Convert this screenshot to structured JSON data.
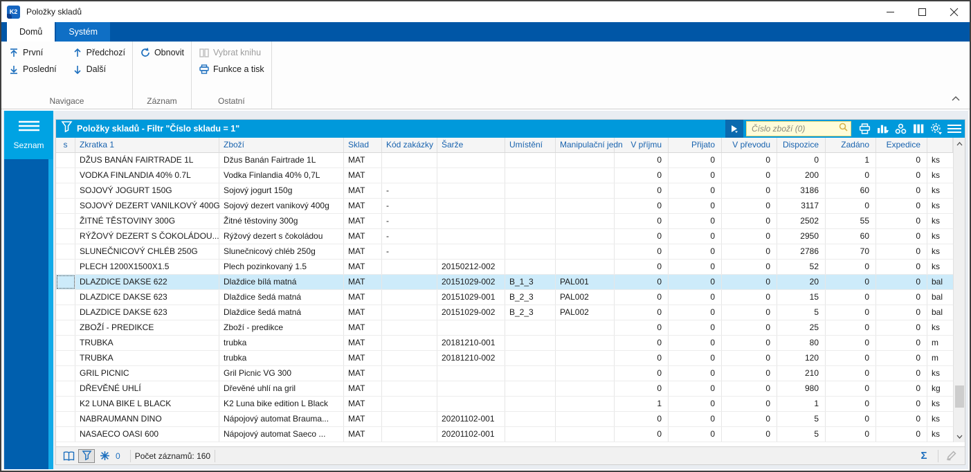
{
  "window": {
    "title": "Položky skladů",
    "app_badge": "K2"
  },
  "ribbon": {
    "tabs": [
      {
        "label": "Domů"
      },
      {
        "label": "Systém"
      }
    ],
    "groups": [
      {
        "label": "Navigace",
        "buttons": [
          {
            "label": "První"
          },
          {
            "label": "Poslední"
          },
          {
            "label": "Předchozí"
          },
          {
            "label": "Další"
          }
        ]
      },
      {
        "label": "Záznam",
        "buttons": [
          {
            "label": "Obnovit"
          }
        ]
      },
      {
        "label": "Ostatní",
        "buttons": [
          {
            "label": "Vybrat knihu"
          },
          {
            "label": "Funkce a tisk"
          }
        ]
      }
    ]
  },
  "sidebar": {
    "menu_label": "Seznam"
  },
  "browse": {
    "caption": "Položky skladů - Filtr \"Číslo skladu = 1\"",
    "search_placeholder": "Číslo zboží (0)"
  },
  "table": {
    "selected_index": 8,
    "columns": [
      {
        "key": "s",
        "label": "s",
        "num": false
      },
      {
        "key": "zkratka1",
        "label": "Zkratka 1",
        "num": false
      },
      {
        "key": "zbozi",
        "label": "Zboží",
        "num": false
      },
      {
        "key": "sklad",
        "label": "Sklad",
        "num": false
      },
      {
        "key": "kod-zakazky",
        "label": "Kód zakázky",
        "num": false
      },
      {
        "key": "sarze",
        "label": "Šarže",
        "num": false
      },
      {
        "key": "umisteni",
        "label": "Umístění",
        "num": false
      },
      {
        "key": "manipulacni-jednotka",
        "label": "Manipulační jedn",
        "num": false
      },
      {
        "key": "v-prijmu",
        "label": "V příjmu",
        "num": true
      },
      {
        "key": "prijato",
        "label": "Přijato",
        "num": true
      },
      {
        "key": "v-prevodu",
        "label": "V převodu",
        "num": true
      },
      {
        "key": "dispozice",
        "label": "Dispozice",
        "num": true
      },
      {
        "key": "zadano",
        "label": "Zadáno",
        "num": true
      },
      {
        "key": "expedice",
        "label": "Expedice",
        "num": true
      },
      {
        "key": "jednotka",
        "label": "",
        "num": false
      }
    ],
    "rows": [
      [
        "",
        "DŽUS BANÁN FAIRTRADE 1L",
        "Džus Banán Fairtrade 1L",
        "MAT",
        "",
        "",
        "",
        "",
        "0",
        "0",
        "0",
        "0",
        "1",
        "0",
        "ks"
      ],
      [
        "",
        "VODKA FINLANDIA 40% 0.7L",
        "Vodka Finlandia 40% 0,7L",
        "MAT",
        "",
        "",
        "",
        "",
        "0",
        "0",
        "0",
        "200",
        "0",
        "0",
        "ks"
      ],
      [
        "",
        "SOJOVÝ JOGURT 150G",
        "Sojový jogurt 150g",
        "MAT",
        "-",
        "",
        "",
        "",
        "0",
        "0",
        "0",
        "3186",
        "60",
        "0",
        "ks"
      ],
      [
        "",
        "SOJOVÝ DEZERT VANILKOVÝ 400G",
        "Sojový dezert vanikový 400g",
        "MAT",
        "-",
        "",
        "",
        "",
        "0",
        "0",
        "0",
        "3117",
        "0",
        "0",
        "ks"
      ],
      [
        "",
        "ŽITNÉ TĚSTOVINY 300G",
        "Žitné těstoviny 300g",
        "MAT",
        "-",
        "",
        "",
        "",
        "0",
        "0",
        "0",
        "2502",
        "55",
        "0",
        "ks"
      ],
      [
        "",
        "RÝŽOVÝ DEZERT S ČOKOLÁDOU...",
        "Rýžový dezert s čokoládou",
        "MAT",
        "-",
        "",
        "",
        "",
        "0",
        "0",
        "0",
        "2950",
        "60",
        "0",
        "ks"
      ],
      [
        "",
        "SLUNEČNICOVÝ CHLÉB 250G",
        "Slunečnicový chléb 250g",
        "MAT",
        "-",
        "",
        "",
        "",
        "0",
        "0",
        "0",
        "2786",
        "70",
        "0",
        "ks"
      ],
      [
        "",
        "PLECH 1200X1500X1.5",
        "Plech pozinkovaný 1.5",
        "MAT",
        "",
        "20150212-002",
        "",
        "",
        "0",
        "0",
        "0",
        "52",
        "0",
        "0",
        "ks"
      ],
      [
        "",
        "DLAZDICE DAKSE 622",
        "Dlaždice bílá matná",
        "MAT",
        "",
        "20151029-002",
        "B_1_3",
        "PAL001",
        "0",
        "0",
        "0",
        "20",
        "0",
        "0",
        "bal"
      ],
      [
        "",
        "DLAZDICE DAKSE 623",
        "Dlaždice šedá matná",
        "MAT",
        "",
        "20151029-001",
        "B_2_3",
        "PAL002",
        "0",
        "0",
        "0",
        "15",
        "0",
        "0",
        "bal"
      ],
      [
        "",
        "DLAZDICE DAKSE 623",
        "Dlaždice šedá matná",
        "MAT",
        "",
        "20151029-002",
        "B_2_3",
        "PAL002",
        "0",
        "0",
        "0",
        "5",
        "0",
        "0",
        "bal"
      ],
      [
        "",
        "ZBOŽÍ - PREDIKCE",
        "Zboží - predikce",
        "MAT",
        "",
        "",
        "",
        "",
        "0",
        "0",
        "0",
        "25",
        "0",
        "0",
        "ks"
      ],
      [
        "",
        "TRUBKA",
        "trubka",
        "MAT",
        "",
        "20181210-001",
        "",
        "",
        "0",
        "0",
        "0",
        "80",
        "0",
        "0",
        "m"
      ],
      [
        "",
        "TRUBKA",
        "trubka",
        "MAT",
        "",
        "20181210-002",
        "",
        "",
        "0",
        "0",
        "0",
        "120",
        "0",
        "0",
        "m"
      ],
      [
        "",
        "GRIL PICNIC",
        "Gril Picnic VG 300",
        "MAT",
        "",
        "",
        "",
        "",
        "0",
        "0",
        "0",
        "210",
        "0",
        "0",
        "ks"
      ],
      [
        "",
        "DŘEVĚNÉ UHLÍ",
        "Dřevěné uhlí na gril",
        "MAT",
        "",
        "",
        "",
        "",
        "0",
        "0",
        "0",
        "980",
        "0",
        "0",
        "kg"
      ],
      [
        "",
        "K2 LUNA BIKE L BLACK",
        "K2 Luna bike edition L Black",
        "MAT",
        "",
        "",
        "",
        "",
        "1",
        "0",
        "0",
        "1",
        "0",
        "0",
        "ks"
      ],
      [
        "",
        "NABRAUMANN DINO",
        "Nápojový automat Brauma...",
        "MAT",
        "",
        "20201102-001",
        "",
        "",
        "0",
        "0",
        "0",
        "5",
        "0",
        "0",
        "ks"
      ],
      [
        "",
        "NASAECO OASI 600",
        "Nápojový automat Saeco ...",
        "MAT",
        "",
        "20201102-001",
        "",
        "",
        "0",
        "0",
        "0",
        "5",
        "0",
        "0",
        "ks"
      ]
    ]
  },
  "statusbar": {
    "frozen_count": "0",
    "record_count": "Počet záznamů: 160"
  }
}
